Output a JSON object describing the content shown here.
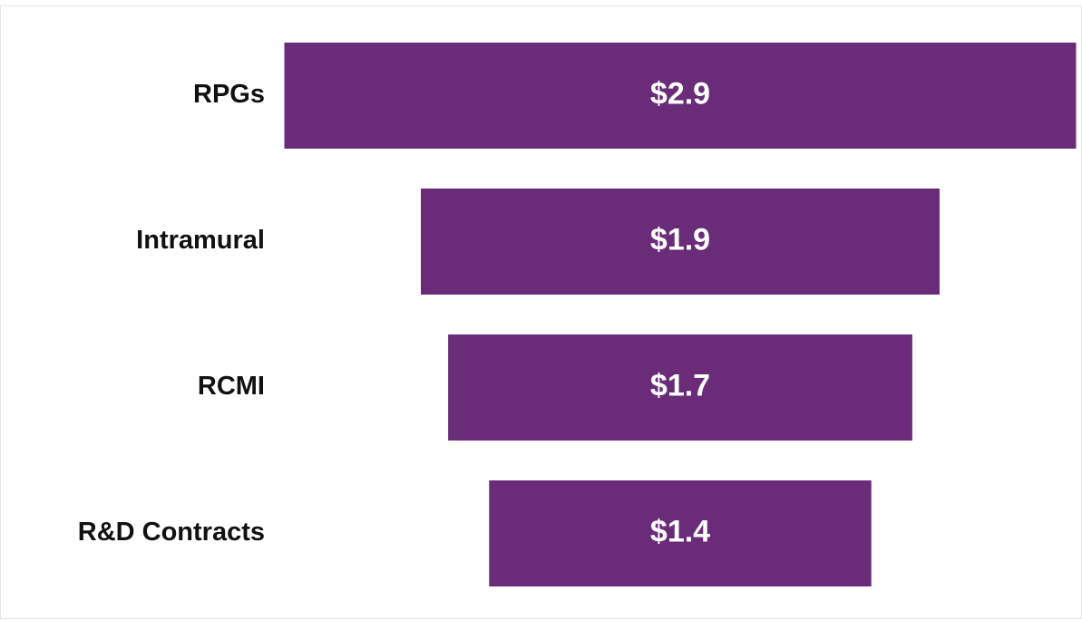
{
  "chart_data": {
    "type": "funnel",
    "categories": [
      "RPGs",
      "Intramural",
      "RCMI",
      "R&D Contracts"
    ],
    "values": [
      2.9,
      1.9,
      1.7,
      1.4
    ],
    "value_labels": [
      "$2.9",
      "$1.9",
      "$1.7",
      "$1.4"
    ],
    "color": "#6a2c79"
  }
}
